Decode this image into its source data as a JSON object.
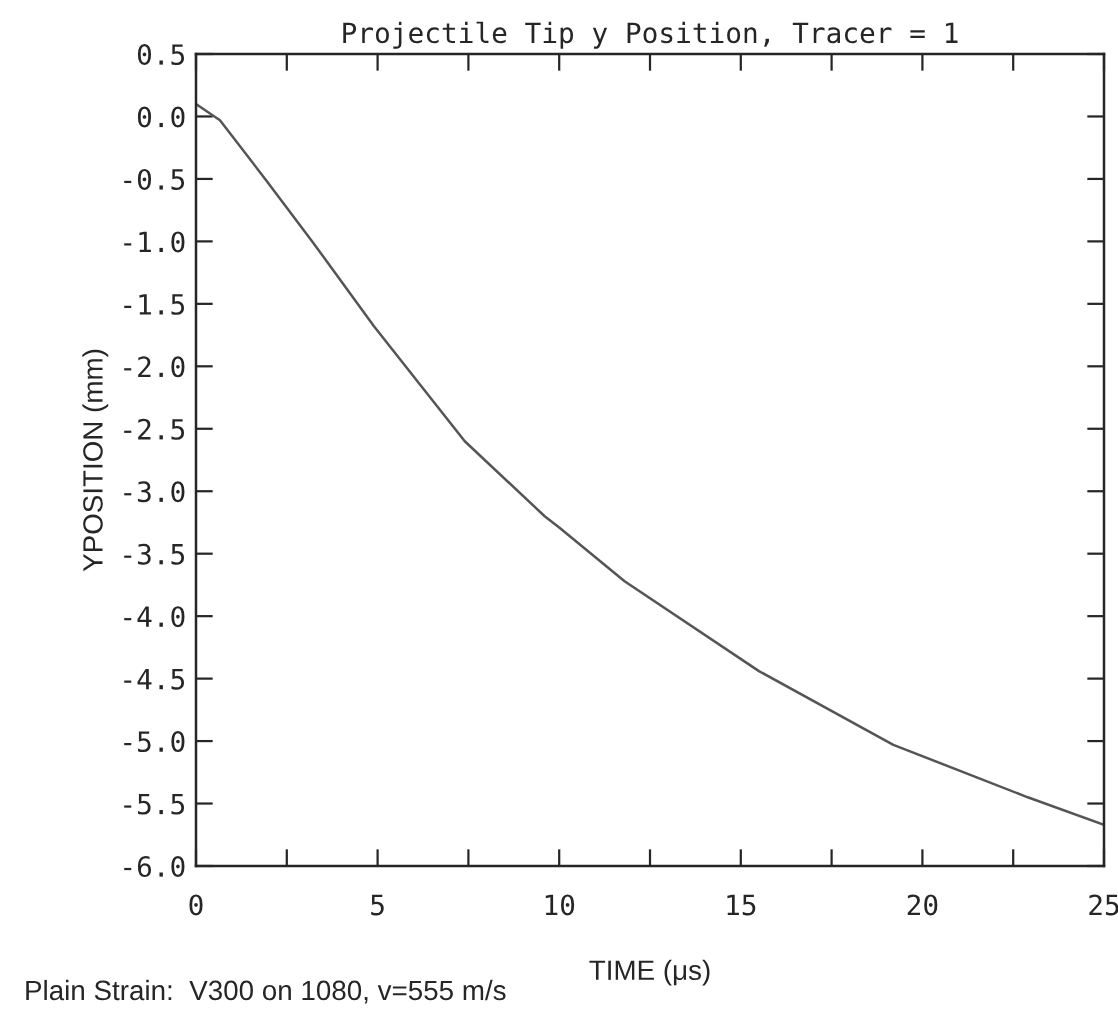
{
  "chart_data": {
    "type": "line",
    "title": "Projectile Tip y Position, Tracer = 1",
    "xlabel": "TIME (μs)",
    "ylabel": "YPOSITION (mm)",
    "annotations": [
      "Plain Strain:  V300 on 1080, v=555 m/s"
    ],
    "series": [
      {
        "color": "#555555",
        "x": [
          0,
          0.66,
          1.93,
          3.2,
          4.9,
          7.4,
          9.6,
          10.0,
          11.8,
          15.5,
          19.2,
          22.9,
          25
        ],
        "values": [
          0.1,
          -0.03,
          -0.51,
          -1.0,
          -1.68,
          -2.6,
          -3.2,
          -3.29,
          -3.72,
          -4.44,
          -5.03,
          -5.45,
          -5.67
        ]
      }
    ],
    "xlim": [
      0,
      25
    ],
    "xticks": [
      0,
      {
        "value": 2.5,
        "label": null
      },
      5,
      {
        "value": 7.5,
        "label": null
      },
      10,
      {
        "value": 12.5,
        "label": null
      },
      15,
      {
        "value": 17.5,
        "label": null
      },
      20,
      {
        "value": 22.5,
        "label": null
      },
      25
    ],
    "ylim": [
      -6,
      0.5
    ],
    "yticks": [
      {
        "value": -6,
        "label": "-6.0"
      },
      {
        "value": -5.5,
        "label": "-5.5"
      },
      {
        "value": -5,
        "label": "-5.0"
      },
      {
        "value": -4.5,
        "label": "-4.5"
      },
      {
        "value": -4,
        "label": "-4.0"
      },
      {
        "value": -3.5,
        "label": "-3.5"
      },
      {
        "value": -3,
        "label": "-3.0"
      },
      {
        "value": -2.5,
        "label": "-2.5"
      },
      {
        "value": -2,
        "label": "-2.0"
      },
      {
        "value": -1.5,
        "label": "-1.5"
      },
      {
        "value": -1,
        "label": "-1.0"
      },
      {
        "value": -0.5,
        "label": "-0.5"
      },
      {
        "value": 0,
        "label": "0.0"
      },
      {
        "value": 0.5,
        "label": "0.5"
      }
    ],
    "grid": false,
    "legend": false,
    "marker": "none",
    "line_style": "solid"
  }
}
